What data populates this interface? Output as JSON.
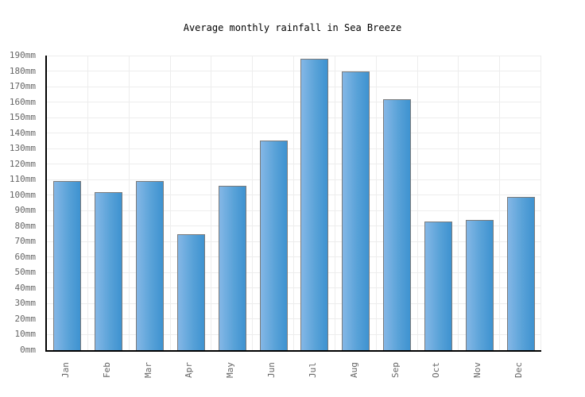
{
  "chart_data": {
    "type": "bar",
    "title": "Average monthly rainfall in Sea Breeze",
    "categories": [
      "Jan",
      "Feb",
      "Mar",
      "Apr",
      "May",
      "Jun",
      "Jul",
      "Aug",
      "Sep",
      "Oct",
      "Nov",
      "Dec"
    ],
    "values": [
      109,
      102,
      109,
      75,
      106,
      135,
      188,
      180,
      162,
      83,
      84,
      99
    ],
    "unit": "mm",
    "ylim": [
      0,
      190
    ],
    "ytick_step": 10,
    "y_tick_labels": [
      "0mm",
      "10mm",
      "20mm",
      "30mm",
      "40mm",
      "50mm",
      "60mm",
      "70mm",
      "80mm",
      "90mm",
      "100mm",
      "110mm",
      "120mm",
      "130mm",
      "140mm",
      "150mm",
      "160mm",
      "170mm",
      "180mm",
      "190mm"
    ],
    "xlabel": "",
    "ylabel": "",
    "grid": true,
    "legend_position": "none",
    "colors": {
      "bar_gradient_left": "#84b7e6",
      "bar_gradient_right": "#3e92d0",
      "bar_border": "#7b7b7b",
      "grid_line": "#ededed",
      "axis_line": "#000000",
      "tick_label": "#666666",
      "title_text": "#000000",
      "background": "#ffffff"
    }
  }
}
